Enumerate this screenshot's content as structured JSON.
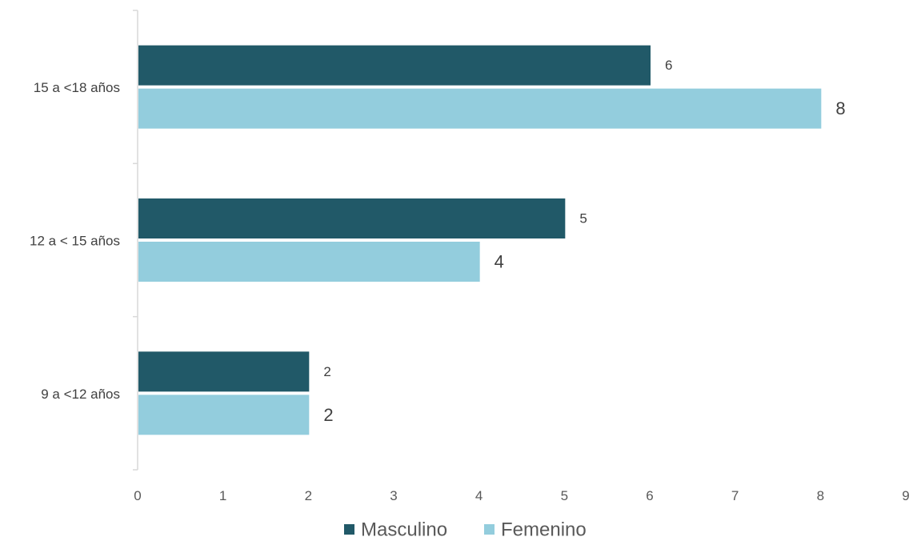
{
  "chart_data": {
    "type": "bar",
    "orientation": "horizontal",
    "categories": [
      "15 a <18 años",
      "12 a < 15 años",
      "9 a <12 años"
    ],
    "series": [
      {
        "name": "Masculino",
        "values": [
          6,
          5,
          2
        ],
        "color": "#215968"
      },
      {
        "name": "Femenino",
        "values": [
          8,
          4,
          2
        ],
        "color": "#93CDDD"
      }
    ],
    "xlim": [
      0,
      9
    ],
    "xticks": [
      "0",
      "1",
      "2",
      "3",
      "4",
      "5",
      "6",
      "7",
      "8",
      "9"
    ],
    "data_labels": true,
    "grid": false,
    "legend_position": "bottom"
  }
}
